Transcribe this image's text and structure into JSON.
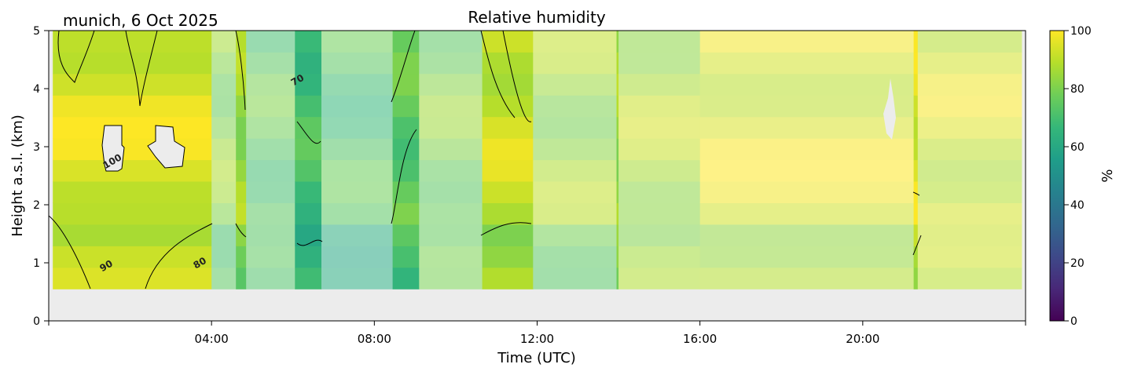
{
  "chart_data": {
    "type": "heatmap",
    "title": "Relative humidity",
    "location_date": "munich, 6 Oct 2025",
    "xlabel": "Time (UTC)",
    "ylabel": "Height a.s.l. (km)",
    "xlim": [
      0,
      24
    ],
    "ylim": [
      0,
      5
    ],
    "x_ticks": [
      4,
      8,
      12,
      16,
      20
    ],
    "x_tick_labels": [
      "04:00",
      "08:00",
      "12:00",
      "16:00",
      "20:00"
    ],
    "y_ticks": [
      0,
      1,
      2,
      3,
      4,
      5
    ],
    "y_tick_labels": [
      "0",
      "1",
      "2",
      "3",
      "4",
      "5"
    ],
    "colorbar": {
      "label": "%",
      "range": [
        0,
        100
      ],
      "ticks": [
        0,
        20,
        40,
        60,
        80,
        100
      ],
      "tick_labels": [
        "0",
        "20",
        "40",
        "60",
        "80",
        "100"
      ],
      "colormap": [
        "#440154",
        "#482878",
        "#3e4989",
        "#31688e",
        "#26828e",
        "#1f9e89",
        "#35b779",
        "#6ece58",
        "#b5de2b",
        "#fde725"
      ]
    },
    "data_floor_km": 0.55,
    "no_data_color": "#ececec",
    "time_segments": [
      {
        "t0": 0.1,
        "t1": 4.0,
        "rh": 95,
        "faded": false
      },
      {
        "t0": 4.0,
        "t1": 4.6,
        "rh": 82,
        "faded": true
      },
      {
        "t0": 4.6,
        "t1": 4.85,
        "rh": 85,
        "faded": false
      },
      {
        "t0": 4.85,
        "t1": 6.05,
        "rh": 75,
        "faded": true
      },
      {
        "t0": 6.05,
        "t1": 6.7,
        "rh": 70,
        "faded": false
      },
      {
        "t0": 6.7,
        "t1": 8.45,
        "rh": 72,
        "faded": true
      },
      {
        "t0": 8.45,
        "t1": 9.1,
        "rh": 75,
        "faded": false
      },
      {
        "t0": 9.1,
        "t1": 10.65,
        "rh": 80,
        "faded": true
      },
      {
        "t0": 10.65,
        "t1": 11.9,
        "rh": 92,
        "faded": false
      },
      {
        "t0": 11.9,
        "t1": 13.95,
        "rh": 85,
        "faded": true
      },
      {
        "t0": 13.95,
        "t1": 14.0,
        "rh": 85,
        "faded": false
      },
      {
        "t0": 14.0,
        "t1": 16.0,
        "rh": 88,
        "faded": true
      },
      {
        "t0": 16.0,
        "t1": 21.25,
        "rh": 95,
        "faded": true
      },
      {
        "t0": 21.25,
        "t1": 21.35,
        "rh": 95,
        "faded": false
      },
      {
        "t0": 21.35,
        "t1": 23.9,
        "rh": 93,
        "faded": true
      }
    ],
    "contour_levels": [
      {
        "label": "100",
        "t": 1.6,
        "h": 2.7
      },
      {
        "label": "90",
        "t": 1.45,
        "h": 0.9
      },
      {
        "label": "80",
        "t": 3.75,
        "h": 0.95
      },
      {
        "label": "70",
        "t": 6.15,
        "h": 4.1
      }
    ]
  }
}
